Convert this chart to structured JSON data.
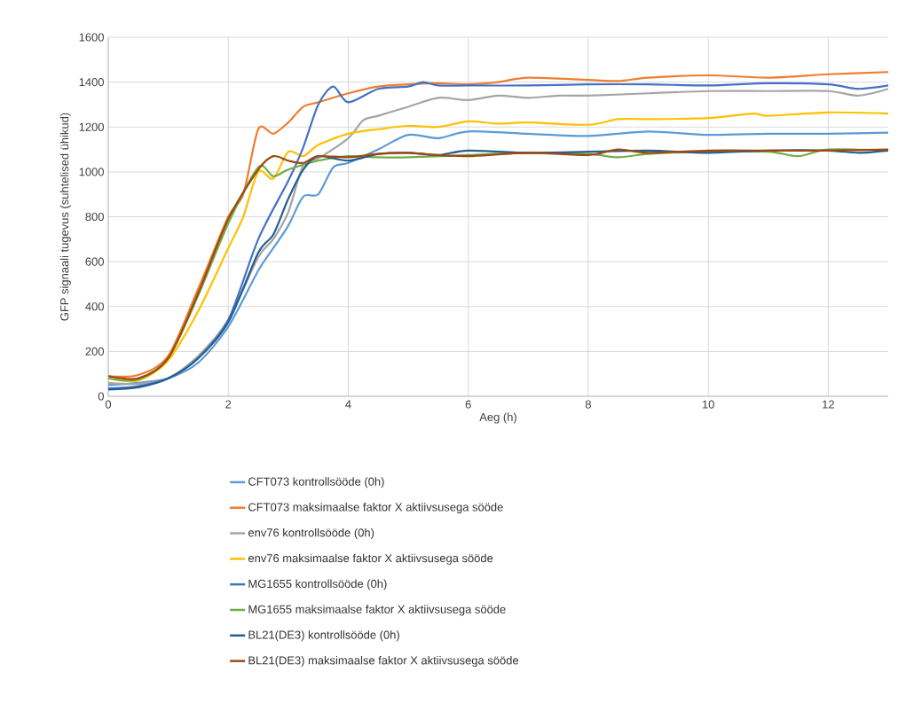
{
  "chart_data": {
    "type": "line",
    "xlabel": "Aeg (h)",
    "ylabel": "GFP signaali tugevus (suhtelised ühikud)",
    "xlim": [
      0,
      13
    ],
    "ylim": [
      0,
      1600
    ],
    "xticks": [
      0,
      2,
      4,
      6,
      8,
      10,
      12
    ],
    "yticks": [
      0,
      200,
      400,
      600,
      800,
      1000,
      1200,
      1400,
      1600
    ],
    "grid": true,
    "legend": "bottom",
    "marker": "none",
    "line_style": "solid",
    "series": [
      {
        "name": "CFT073 kontrollsööde (0h)",
        "color": "#5b9bd5",
        "x": [
          0,
          0.5,
          1,
          1.5,
          2,
          2.5,
          2.75,
          3,
          3.25,
          3.5,
          3.75,
          4,
          4.5,
          5,
          5.5,
          6,
          7,
          8,
          9,
          10,
          11,
          12,
          13
        ],
        "values": [
          50,
          60,
          80,
          150,
          310,
          560,
          660,
          760,
          890,
          900,
          1020,
          1040,
          1100,
          1165,
          1150,
          1180,
          1170,
          1160,
          1180,
          1165,
          1170,
          1170,
          1175
        ]
      },
      {
        "name": "CFT073 maksimaalse faktor X aktiivsusega sööde",
        "color": "#ed7d31",
        "x": [
          0,
          0.5,
          1,
          1.5,
          2,
          2.25,
          2.5,
          2.75,
          3,
          3.25,
          3.5,
          4,
          4.5,
          5,
          5.5,
          6,
          6.5,
          7,
          8,
          8.5,
          9,
          10,
          11,
          12,
          13
        ],
        "values": [
          90,
          95,
          180,
          480,
          800,
          900,
          1190,
          1170,
          1220,
          1290,
          1310,
          1350,
          1380,
          1390,
          1395,
          1390,
          1400,
          1420,
          1410,
          1405,
          1420,
          1430,
          1420,
          1435,
          1445
        ]
      },
      {
        "name": "env76 kontrollsööde (0h)",
        "color": "#a5a5a5",
        "x": [
          0,
          0.5,
          1,
          1.5,
          2,
          2.5,
          2.75,
          3,
          3.25,
          3.5,
          4,
          4.25,
          4.5,
          5,
          5.5,
          6,
          6.5,
          7,
          7.5,
          8,
          9,
          10,
          11,
          12,
          12.5,
          13
        ],
        "values": [
          60,
          55,
          80,
          180,
          340,
          620,
          700,
          820,
          1030,
          1060,
          1150,
          1230,
          1250,
          1290,
          1330,
          1320,
          1340,
          1330,
          1340,
          1340,
          1350,
          1360,
          1360,
          1360,
          1340,
          1370
        ]
      },
      {
        "name": "env76 maksimaalse faktor X aktiivsusega sööde",
        "color": "#ffc000",
        "x": [
          0,
          0.5,
          1,
          1.5,
          2,
          2.25,
          2.5,
          2.75,
          3,
          3.25,
          3.5,
          4,
          4.5,
          5,
          5.5,
          6,
          6.5,
          7,
          8,
          8.5,
          9,
          10,
          10.75,
          11,
          12,
          13
        ],
        "values": [
          80,
          70,
          160,
          380,
          660,
          800,
          1000,
          970,
          1090,
          1070,
          1120,
          1170,
          1190,
          1205,
          1200,
          1225,
          1215,
          1220,
          1210,
          1235,
          1235,
          1240,
          1260,
          1250,
          1265,
          1260
        ]
      },
      {
        "name": "MG1655 kontrollsööde (0h)",
        "color": "#4472c4",
        "x": [
          0,
          0.5,
          1,
          1.5,
          2,
          2.5,
          3,
          3.25,
          3.5,
          3.75,
          4,
          4.5,
          5,
          5.25,
          5.5,
          6,
          7,
          8,
          9,
          10,
          11,
          12,
          12.5,
          13
        ],
        "values": [
          35,
          45,
          80,
          170,
          340,
          700,
          960,
          1110,
          1300,
          1380,
          1310,
          1370,
          1380,
          1400,
          1385,
          1385,
          1385,
          1390,
          1390,
          1385,
          1395,
          1390,
          1370,
          1385
        ]
      },
      {
        "name": "MG1655 maksimaalse faktor X aktiivsusega sööde",
        "color": "#70ad47",
        "x": [
          0,
          0.5,
          1,
          1.5,
          2,
          2.5,
          2.75,
          3,
          3.5,
          4,
          4.5,
          5,
          6,
          7,
          8,
          8.5,
          9,
          10,
          11,
          11.5,
          12,
          13
        ],
        "values": [
          80,
          75,
          170,
          450,
          770,
          1020,
          980,
          1010,
          1050,
          1070,
          1065,
          1065,
          1075,
          1085,
          1080,
          1065,
          1080,
          1090,
          1090,
          1070,
          1100,
          1095
        ]
      },
      {
        "name": "BL21(DE3) kontrollsööde (0h)",
        "color": "#255e91",
        "x": [
          0,
          0.5,
          1,
          1.5,
          2,
          2.5,
          2.75,
          3,
          3.25,
          3.5,
          4,
          4.5,
          5,
          5.5,
          6,
          7,
          8,
          9,
          10,
          11,
          12,
          12.5,
          13
        ],
        "values": [
          30,
          40,
          80,
          170,
          330,
          640,
          720,
          880,
          1010,
          1070,
          1050,
          1080,
          1085,
          1075,
          1095,
          1085,
          1090,
          1095,
          1085,
          1095,
          1095,
          1085,
          1095
        ]
      },
      {
        "name": "BL21(DE3) maksimaalse faktor X aktiivsusega sööde",
        "color": "#9e480e",
        "x": [
          0,
          0.5,
          1,
          1.5,
          2,
          2.5,
          2.75,
          3,
          3.25,
          3.5,
          4,
          4.5,
          5,
          5.5,
          6,
          7,
          8,
          8.5,
          9,
          10,
          11,
          12,
          13
        ],
        "values": [
          90,
          80,
          170,
          460,
          790,
          1010,
          1070,
          1050,
          1040,
          1070,
          1065,
          1080,
          1085,
          1075,
          1070,
          1085,
          1075,
          1100,
          1085,
          1095,
          1095,
          1095,
          1100
        ]
      }
    ]
  }
}
